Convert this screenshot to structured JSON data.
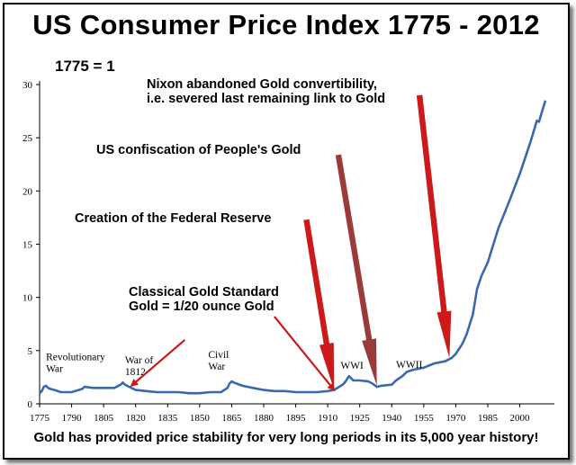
{
  "chart_data": {
    "type": "line",
    "title": "US Consumer Price Index 1775 - 2012",
    "subtitle": "1775 = 1",
    "footer": "Gold has provided price stability for very long periods in its 5,000 year history!",
    "xlim": [
      1775,
      2012
    ],
    "ylim": [
      0,
      30
    ],
    "x_ticks": [
      1775,
      1790,
      1805,
      1820,
      1835,
      1850,
      1865,
      1880,
      1895,
      1910,
      1925,
      1940,
      1955,
      1970,
      1985,
      2000
    ],
    "y_ticks": [
      0,
      5,
      10,
      15,
      20,
      25,
      30
    ],
    "grid": false,
    "line_color": "#3a68b0",
    "series": [
      {
        "x": [
          1775,
          1776,
          1777,
          1778,
          1779,
          1780,
          1782,
          1785,
          1790,
          1795,
          1796,
          1800,
          1805,
          1810,
          1813,
          1814,
          1815,
          1817,
          1820,
          1825,
          1830,
          1835,
          1840,
          1845,
          1850,
          1855,
          1860,
          1863,
          1864,
          1865,
          1866,
          1870,
          1875,
          1880,
          1885,
          1890,
          1895,
          1900,
          1905,
          1910,
          1913,
          1917,
          1918,
          1920,
          1922,
          1925,
          1929,
          1931,
          1933,
          1935,
          1940,
          1942,
          1945,
          1947,
          1950,
          1955,
          1960,
          1965,
          1968,
          1970,
          1973,
          1975,
          1978,
          1980,
          1982,
          1985,
          1990,
          1995,
          2000,
          2005,
          2008,
          2009,
          2010,
          2012
        ],
        "y": [
          1.0,
          1.2,
          1.6,
          1.7,
          1.5,
          1.4,
          1.3,
          1.1,
          1.1,
          1.4,
          1.6,
          1.5,
          1.5,
          1.5,
          1.8,
          2.0,
          1.8,
          1.6,
          1.3,
          1.2,
          1.1,
          1.1,
          1.1,
          1.0,
          1.0,
          1.1,
          1.1,
          1.5,
          1.9,
          2.1,
          2.0,
          1.7,
          1.5,
          1.3,
          1.2,
          1.2,
          1.1,
          1.1,
          1.1,
          1.2,
          1.3,
          1.8,
          2.0,
          2.6,
          2.2,
          2.2,
          2.1,
          1.9,
          1.6,
          1.7,
          1.8,
          2.2,
          2.6,
          3.0,
          3.2,
          3.4,
          3.8,
          4.0,
          4.3,
          4.7,
          5.6,
          6.5,
          8.4,
          10.8,
          12.0,
          13.3,
          16.5,
          19.0,
          21.6,
          24.6,
          26.6,
          26.5,
          27.2,
          28.5
        ]
      }
    ],
    "annotations": [
      {
        "text": [
          "Nixon abandoned Gold convertibility,",
          "i.e. severed last remaining link to Gold"
        ],
        "arrow_from": [
          1953,
          29.0
        ],
        "arrow_to": [
          1967,
          4.3
        ],
        "arrow_color": "#cc1a1a"
      },
      {
        "text": [
          "US confiscation of People's Gold"
        ],
        "arrow_from": [
          1915,
          23.4
        ],
        "arrow_to": [
          1933,
          1.7
        ],
        "arrow_color": "#9a3a3a"
      },
      {
        "text": [
          "Creation of the Federal Reserve"
        ],
        "arrow_from": [
          1900,
          17.3
        ],
        "arrow_to": [
          1913,
          1.3
        ],
        "arrow_color": "#cc1a1a"
      },
      {
        "text": [
          "Classical Gold Standard",
          "Gold = 1/20 ounce Gold"
        ],
        "arrow_from": [
          1885,
          8.2
        ],
        "arrow_to": [
          1913,
          1.3
        ],
        "arrow_color": "#cc1a1a"
      },
      {
        "text": [
          "Classical Gold Standard",
          "Gold = 1/20 ounce Gold"
        ],
        "arrow_from": [
          1843,
          6.0
        ],
        "arrow_to": [
          1818,
          1.7
        ],
        "arrow_color": "#cc1a1a",
        "show_text": false
      }
    ],
    "events": [
      {
        "lines": [
          "Revolutionary",
          "War"
        ],
        "x": 1778,
        "y": 4.1
      },
      {
        "lines": [
          "War of",
          "1812"
        ],
        "x": 1815,
        "y": 3.8
      },
      {
        "lines": [
          "Civil",
          "War"
        ],
        "x": 1854,
        "y": 4.3
      },
      {
        "lines": [
          "WWI"
        ],
        "x": 1916,
        "y": 3.3
      },
      {
        "lines": [
          "WWII"
        ],
        "x": 1942,
        "y": 3.4
      }
    ]
  }
}
